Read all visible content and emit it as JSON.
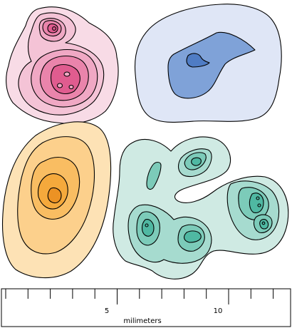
{
  "scale": {
    "tick_label_5": "5",
    "tick_label_10": "10",
    "unit_label": "milimeters"
  },
  "colors": {
    "pink_blob": [
      "#f8dbe6",
      "#f4c3d6",
      "#f0a8c4",
      "#ea84ab",
      "#e05c8f"
    ],
    "blue_blob": [
      "#dfe6f6",
      "#7fa2d8",
      "#4f7cc4"
    ],
    "orange_blob": [
      "#fde2b5",
      "#fcd08c",
      "#f9bd62",
      "#f5a93c",
      "#ec9224"
    ],
    "teal_blob": [
      "#cfeae3",
      "#a6dbcf",
      "#7ccbb9",
      "#4fb8a2"
    ],
    "outline": "#000000"
  }
}
